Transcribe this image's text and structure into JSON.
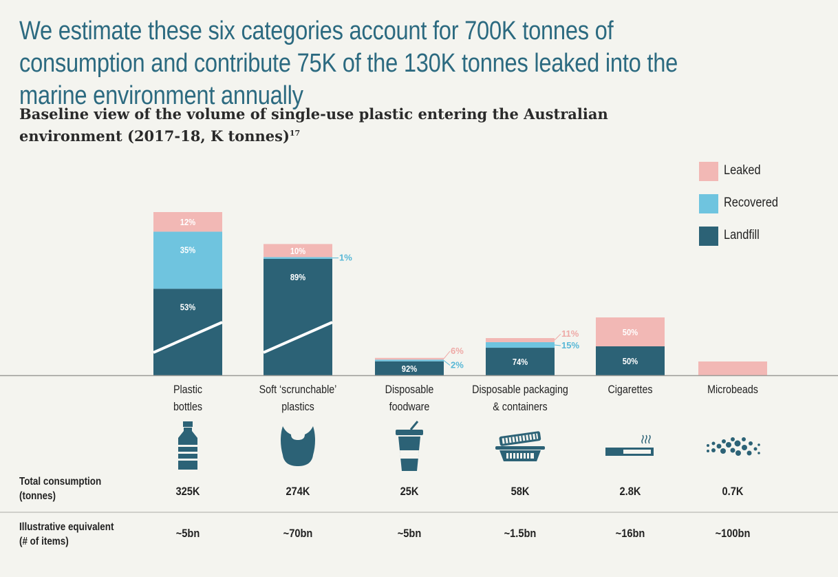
{
  "headline": "We estimate these six categories account for 700K tonnes of consumption and contribute 75K of the 130K tonnes leaked into the marine environment annually",
  "subtitle": "Baseline view of the volume of single-use plastic entering the Australian environment (2017-18, K tonnes)",
  "subtitle_ref": "17",
  "colors": {
    "leaked": "#f2b8b5",
    "recovered": "#6fc4df",
    "landfill": "#2c6276",
    "title": "#2c6a80"
  },
  "legend": [
    {
      "key": "leaked",
      "label": "Leaked"
    },
    {
      "key": "recovered",
      "label": "Recovered"
    },
    {
      "key": "landfill",
      "label": "Landfill"
    }
  ],
  "chart_data": {
    "type": "bar",
    "stacked": true,
    "categories": [
      "Plastic bottles",
      "Soft 'scrunchable' plastics",
      "Disposable foodware",
      "Disposable packaging & containers",
      "Cigarettes",
      "Microbeads"
    ],
    "totals_k_tonnes": [
      325,
      274,
      25,
      58,
      2.8,
      0.7
    ],
    "series": [
      {
        "name": "Landfill",
        "shares_pct": [
          53,
          89,
          92,
          74,
          50,
          null
        ],
        "labels": [
          "53%",
          "89%",
          "92%",
          "74%",
          "50%",
          ""
        ]
      },
      {
        "name": "Recovered",
        "shares_pct": [
          35,
          1,
          2,
          15,
          null,
          null
        ],
        "labels": [
          "35%",
          "1%",
          "2%",
          "15%",
          "",
          ""
        ]
      },
      {
        "name": "Leaked",
        "shares_pct": [
          12,
          10,
          6,
          11,
          50,
          100
        ],
        "labels": [
          "12%",
          "10%",
          "6%",
          "11%",
          "50%",
          ""
        ]
      }
    ],
    "axis_breaks": [
      true,
      true,
      false,
      false,
      false,
      false
    ],
    "legend_position": "top-right"
  },
  "table": {
    "categories": [
      {
        "line1": "Plastic",
        "line2": "bottles",
        "icon": "bottle-icon",
        "consumption": "325K",
        "equivalent": "~5bn"
      },
      {
        "line1": "Soft ‘scrunchable’",
        "line2": "plastics",
        "icon": "plastic-bag-icon",
        "consumption": "274K",
        "equivalent": "~70bn"
      },
      {
        "line1": "Disposable",
        "line2": "foodware",
        "icon": "takeaway-cup-icon",
        "consumption": "25K",
        "equivalent": "~5bn"
      },
      {
        "line1": "Disposable packaging",
        "line2": "& containers",
        "icon": "food-container-icon",
        "consumption": "58K",
        "equivalent": "~1.5bn"
      },
      {
        "line1": "Cigarettes",
        "line2": "",
        "icon": "cigarette-icon",
        "consumption": "2.8K",
        "equivalent": "~16bn"
      },
      {
        "line1": "Microbeads",
        "line2": "",
        "icon": "microbeads-icon",
        "consumption": "0.7K",
        "equivalent": "~100bn"
      }
    ],
    "row_consumption_label_1": "Total consumption",
    "row_consumption_label_2": "(tonnes)",
    "row_equivalent_label_1": "Illustrative equivalent",
    "row_equivalent_label_2": "(# of items)"
  }
}
